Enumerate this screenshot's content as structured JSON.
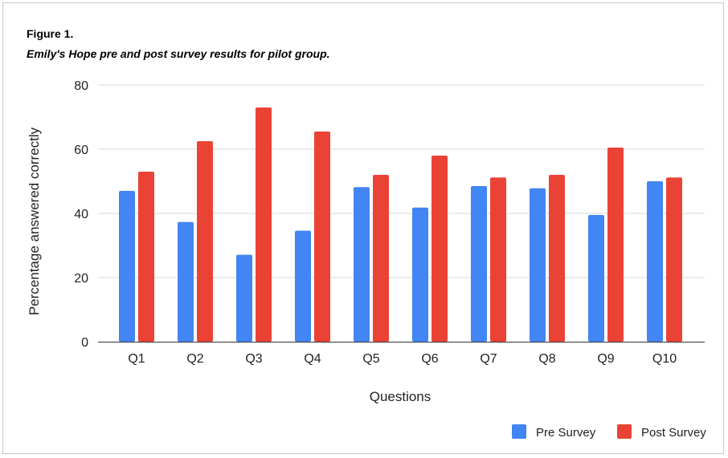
{
  "figure": {
    "label": "Figure 1.",
    "caption": "Emily's Hope pre and post survey results for pilot group."
  },
  "chart_data": {
    "type": "bar",
    "categories": [
      "Q1",
      "Q2",
      "Q3",
      "Q4",
      "Q5",
      "Q6",
      "Q7",
      "Q8",
      "Q9",
      "Q10"
    ],
    "series": [
      {
        "name": "Pre Survey",
        "color": "#4285f4",
        "values": [
          47,
          37.3,
          27.1,
          34.6,
          48.2,
          41.8,
          48.5,
          47.8,
          39.5,
          50
        ]
      },
      {
        "name": "Post Survey",
        "color": "#ea4335",
        "values": [
          53,
          62.5,
          73,
          65.5,
          52,
          58,
          51.2,
          52,
          60.5,
          51.2
        ]
      }
    ],
    "xlabel": "Questions",
    "ylabel": "Percentage answered correctly",
    "ylim": [
      0,
      80
    ],
    "yticks": [
      "0",
      "20",
      "40",
      "60",
      "80"
    ],
    "grid": true,
    "legend_position": "bottom-right"
  }
}
